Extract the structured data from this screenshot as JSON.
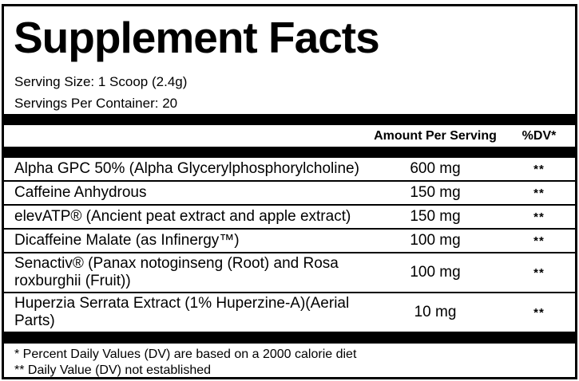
{
  "title": "Supplement Facts",
  "serving_info": {
    "serving_size": "Serving Size: 1 Scoop (2.4g)",
    "servings_per_container": "Servings Per Container: 20"
  },
  "columns": {
    "amount_header": "Amount Per Serving",
    "dv_header": "%DV*"
  },
  "ingredients": [
    {
      "name": "Alpha GPC 50% (Alpha Glycerylphosphorylcholine)",
      "amount": "600 mg",
      "dv": "**"
    },
    {
      "name": "Caffeine Anhydrous",
      "amount": "150 mg",
      "dv": "**"
    },
    {
      "name": "elevATP® (Ancient peat extract and apple extract)",
      "amount": "150 mg",
      "dv": "**"
    },
    {
      "name": "Dicaffeine Malate (as Infinergy™)",
      "amount": "100 mg",
      "dv": "**"
    },
    {
      "name": "Senactiv® (Panax notoginseng (Root) and Rosa roxburghii (Fruit))",
      "amount": "100 mg",
      "dv": "**"
    },
    {
      "name": "Huperzia Serrata Extract (1% Huperzine-A)(Aerial Parts)",
      "amount": "10 mg",
      "dv": "**"
    }
  ],
  "footnotes": [
    "* Percent Daily Values (DV) are based on a 2000 calorie diet",
    "** Daily Value (DV) not established"
  ],
  "colors": {
    "text": "#000000",
    "background": "#ffffff",
    "rule": "#000000"
  }
}
